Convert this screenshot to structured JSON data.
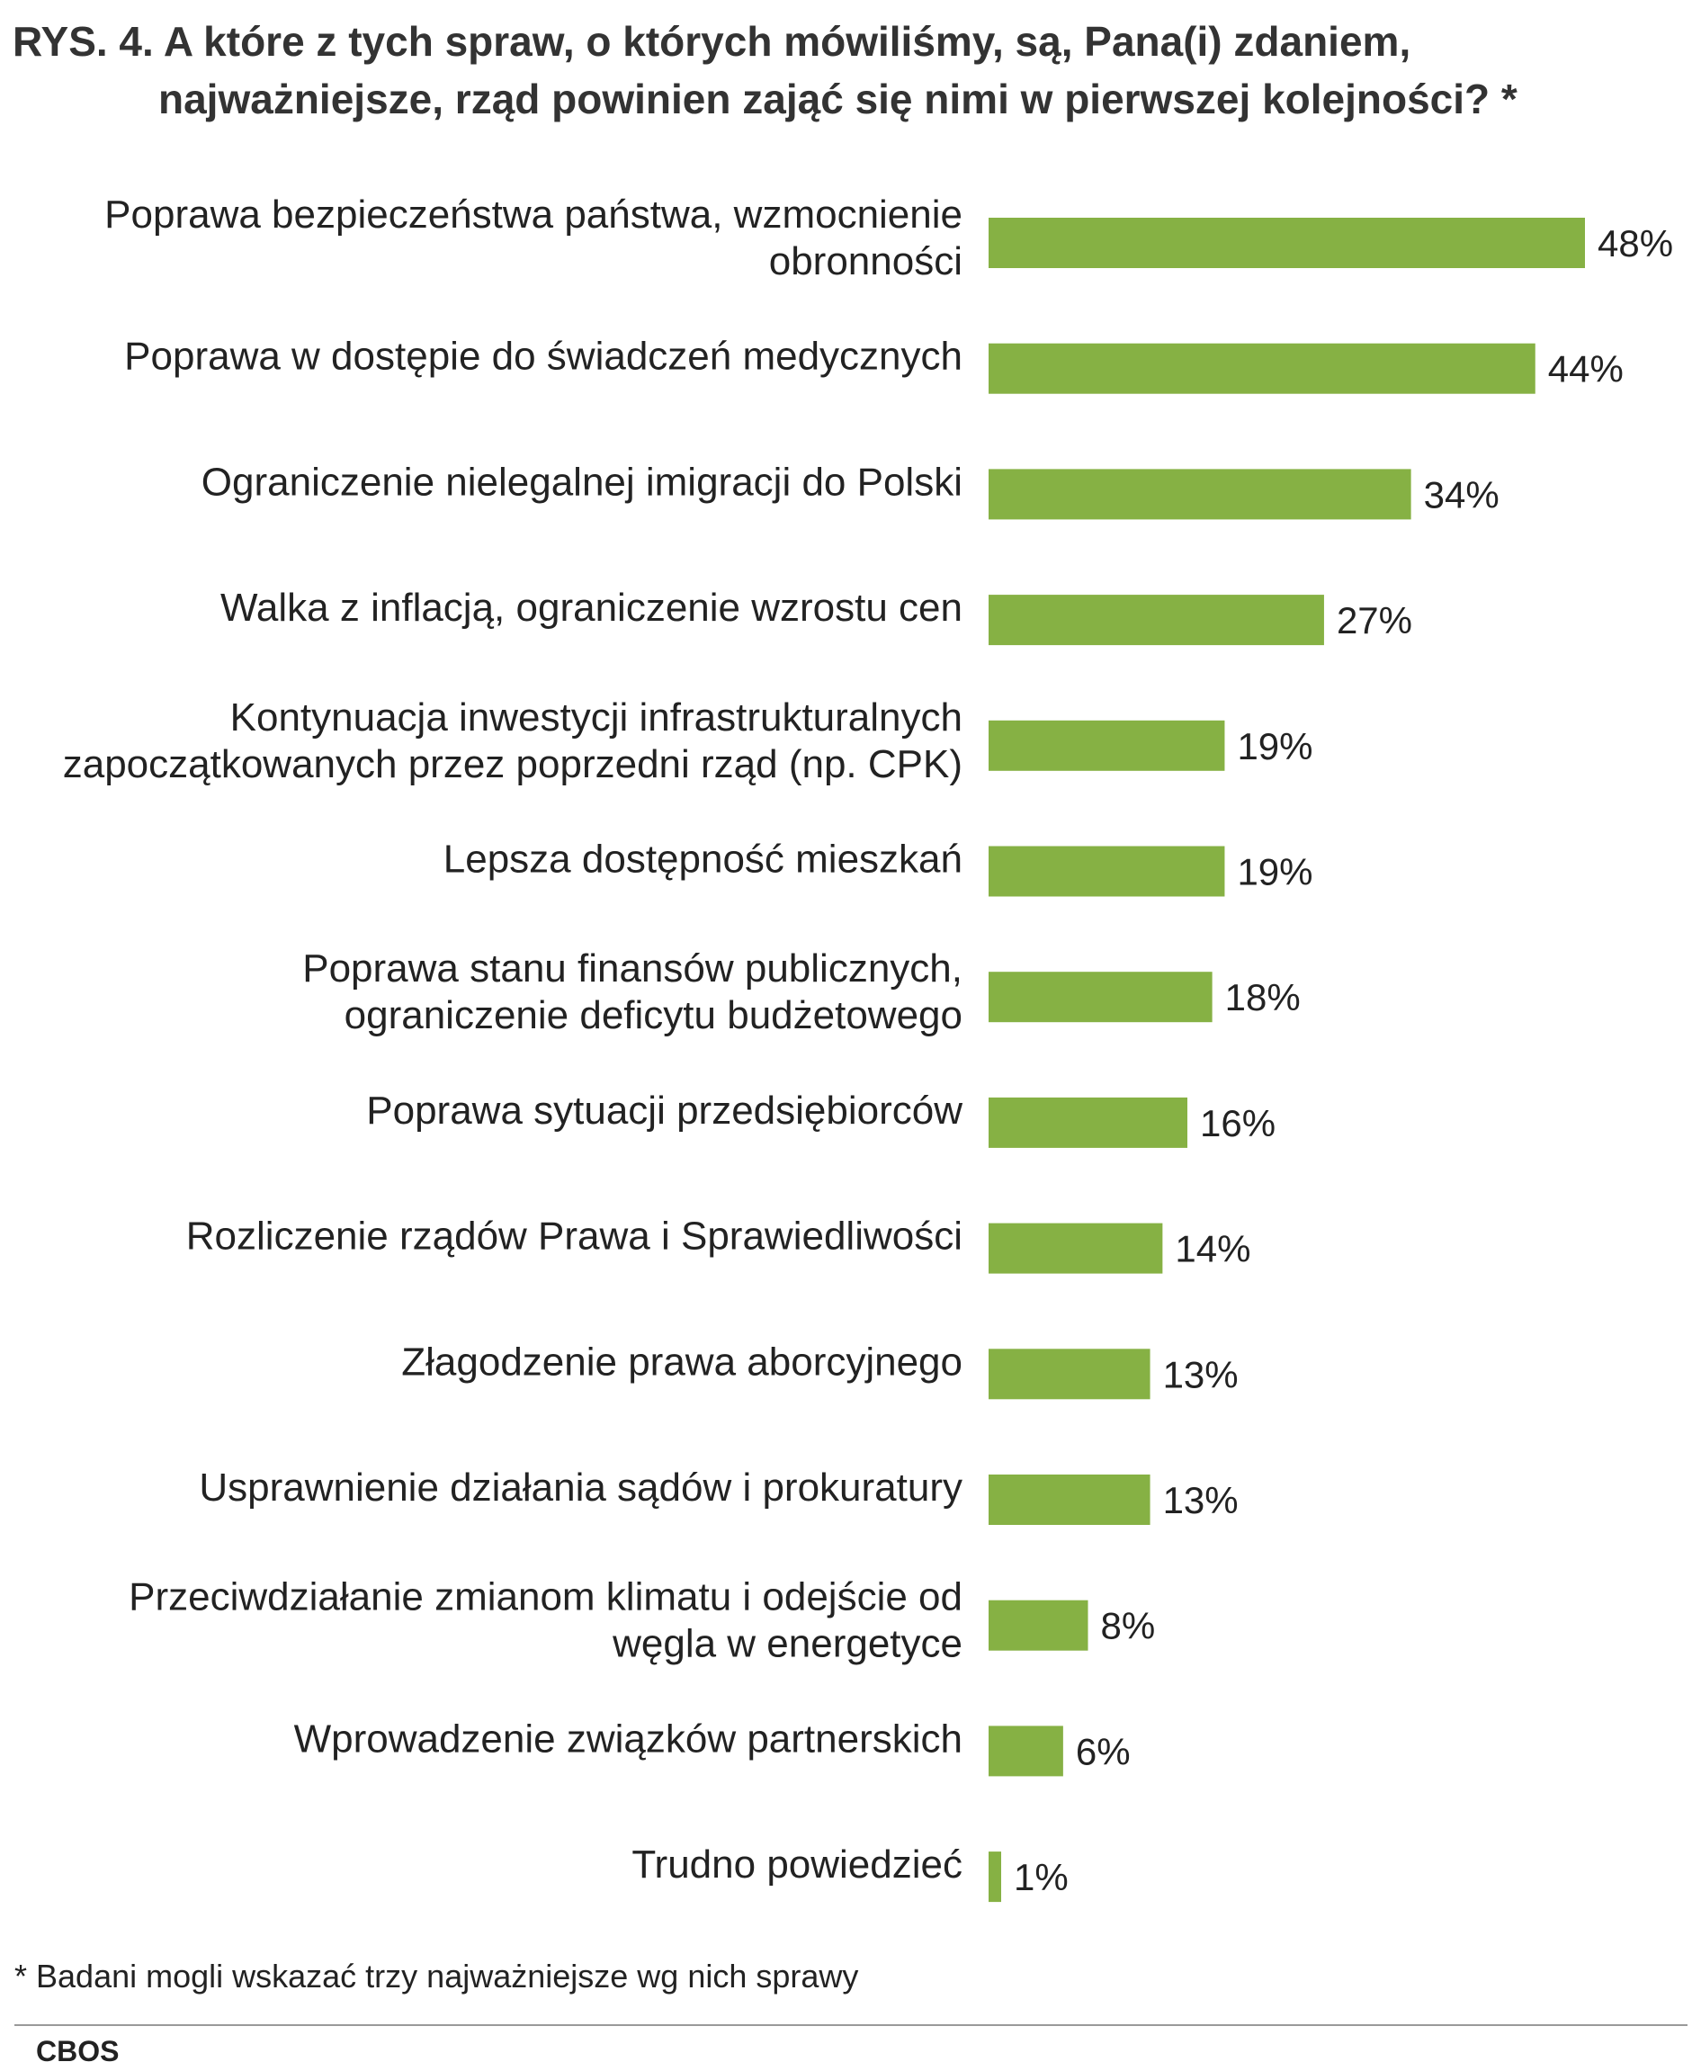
{
  "chart_data": {
    "type": "bar",
    "orientation": "horizontal",
    "title": "RYS. 4. A które z tych spraw, o których mówiliśmy, są, Pana(i) zdaniem, najważniejsze, rząd powinien zająć się nimi w pierwszej kolejności? *",
    "title_lines": [
      "RYS. 4. A które z tych spraw, o których mówiliśmy, są, Pana(i) zdaniem,",
      "najważniejsze, rząd powinien zająć się nimi w pierwszej kolejności? *"
    ],
    "categories": [
      "Poprawa bezpieczeństwa państwa, wzmocnienie obronności",
      "Poprawa w dostępie do świadczeń medycznych",
      "Ograniczenie nielegalnej imigracji do Polski",
      "Walka z inflacją, ograniczenie wzrostu cen",
      "Kontynuacja inwestycji infrastrukturalnych zapoczątkowanych przez poprzedni rząd (np. CPK)",
      "Lepsza dostępność mieszkań",
      "Poprawa stanu finansów publicznych, ograniczenie deficytu budżetowego",
      "Poprawa sytuacji przedsiębiorców",
      "Rozliczenie rządów Prawa i Sprawiedliwości",
      "Złagodzenie prawa aborcyjnego",
      "Usprawnienie działania sądów i prokuratury",
      "Przeciwdziałanie zmianom klimatu i odejście od węgla w energetyce",
      "Wprowadzenie związków partnerskich",
      "Trudno powiedzieć"
    ],
    "category_lines": [
      [
        "Poprawa bezpieczeństwa państwa, wzmocnienie",
        "obronności"
      ],
      [
        "Poprawa w dostępie do świadczeń medycznych"
      ],
      [
        "Ograniczenie nielegalnej imigracji do Polski"
      ],
      [
        "Walka z inflacją, ograniczenie wzrostu cen"
      ],
      [
        "Kontynuacja inwestycji infrastrukturalnych",
        "zapoczątkowanych przez poprzedni rząd (np. CPK)"
      ],
      [
        "Lepsza dostępność mieszkań"
      ],
      [
        "Poprawa stanu finansów publicznych,",
        "ograniczenie deficytu budżetowego"
      ],
      [
        "Poprawa sytuacji przedsiębiorców"
      ],
      [
        "Rozliczenie rządów Prawa i Sprawiedliwości"
      ],
      [
        "Złagodzenie prawa aborcyjnego"
      ],
      [
        "Usprawnienie działania sądów i prokuratury"
      ],
      [
        "Przeciwdziałanie zmianom klimatu i odejście od",
        "węgla w energetyce"
      ],
      [
        "Wprowadzenie związków partnerskich"
      ],
      [
        "Trudno powiedzieć"
      ]
    ],
    "values": [
      48,
      44,
      34,
      27,
      19,
      19,
      18,
      16,
      14,
      13,
      13,
      8,
      6,
      1
    ],
    "value_labels": [
      "48%",
      "44%",
      "34%",
      "27%",
      "19%",
      "19%",
      "18%",
      "16%",
      "14%",
      "13%",
      "13%",
      "8%",
      "6%",
      "1%"
    ],
    "unit": "%",
    "xlim": [
      0,
      48
    ],
    "grid": false,
    "legend": "none",
    "bar_color": "#86b144"
  },
  "footnote": "* Badani mogli wskazać trzy najważniejsze wg nich sprawy",
  "source": "CBOS"
}
